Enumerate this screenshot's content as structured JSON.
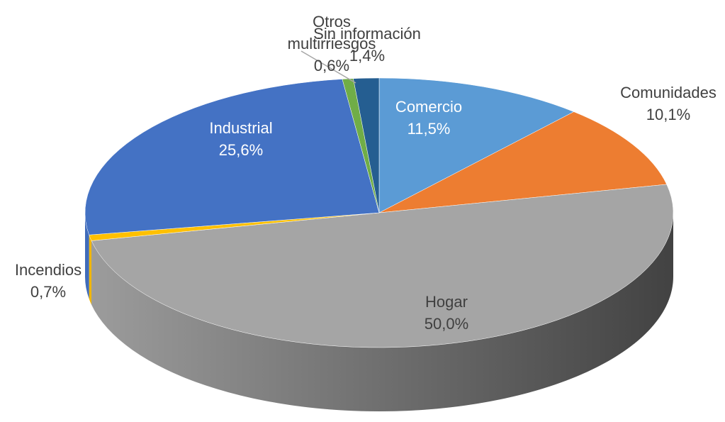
{
  "chart_data": {
    "type": "pie",
    "categories": [
      "Comercio",
      "Comunidades",
      "Hogar",
      "Incendios",
      "Industrial",
      "Otros multirriesgos",
      "Sin información"
    ],
    "values": [
      11.5,
      10.1,
      50.0,
      0.7,
      25.6,
      0.6,
      1.4
    ],
    "value_labels": [
      "11,5%",
      "10,1%",
      "50,0%",
      "0,7%",
      "25,6%",
      "0,6%",
      "1,4%"
    ],
    "colors": [
      "#5b9bd5",
      "#ed7d31",
      "#a5a5a5",
      "#ffc000",
      "#4472c4",
      "#70ad47",
      "#255e91"
    ]
  }
}
